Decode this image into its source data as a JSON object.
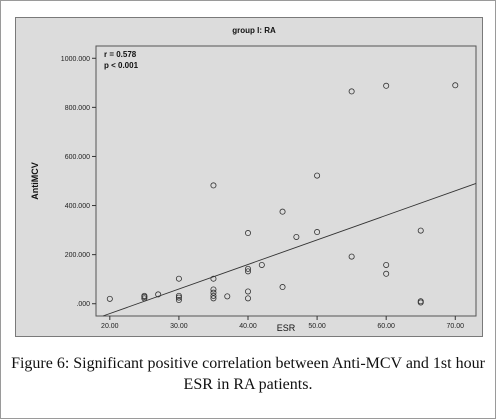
{
  "chart_data": {
    "type": "scatter",
    "title": "group I: RA",
    "xlabel": "ESR",
    "ylabel": "AntiMCV",
    "xlim": [
      18,
      73
    ],
    "ylim": [
      -50,
      1050
    ],
    "x_ticks": [
      "20.00",
      "30.00",
      "40.00",
      "50.00",
      "60.00",
      "70.00"
    ],
    "y_ticks": [
      ".000",
      "200.000",
      "400.000",
      "600.000",
      "800.000",
      "1000.000"
    ],
    "annotations": [
      "r = 0.578",
      "p < 0.001"
    ],
    "grid": false,
    "points": [
      {
        "x": 20,
        "y": 20
      },
      {
        "x": 25,
        "y": 22
      },
      {
        "x": 25,
        "y": 28
      },
      {
        "x": 25,
        "y": 32
      },
      {
        "x": 27,
        "y": 38
      },
      {
        "x": 30,
        "y": 15
      },
      {
        "x": 30,
        "y": 25
      },
      {
        "x": 30,
        "y": 32
      },
      {
        "x": 30,
        "y": 102
      },
      {
        "x": 35,
        "y": 22
      },
      {
        "x": 35,
        "y": 32
      },
      {
        "x": 35,
        "y": 45
      },
      {
        "x": 35,
        "y": 58
      },
      {
        "x": 35,
        "y": 102
      },
      {
        "x": 35,
        "y": 482
      },
      {
        "x": 37,
        "y": 30
      },
      {
        "x": 40,
        "y": 22
      },
      {
        "x": 40,
        "y": 50
      },
      {
        "x": 40,
        "y": 132
      },
      {
        "x": 40,
        "y": 142
      },
      {
        "x": 40,
        "y": 288
      },
      {
        "x": 42,
        "y": 158
      },
      {
        "x": 45,
        "y": 68
      },
      {
        "x": 45,
        "y": 375
      },
      {
        "x": 47,
        "y": 272
      },
      {
        "x": 50,
        "y": 292
      },
      {
        "x": 50,
        "y": 522
      },
      {
        "x": 55,
        "y": 192
      },
      {
        "x": 55,
        "y": 865
      },
      {
        "x": 60,
        "y": 122
      },
      {
        "x": 60,
        "y": 158
      },
      {
        "x": 60,
        "y": 888
      },
      {
        "x": 65,
        "y": 5
      },
      {
        "x": 65,
        "y": 10
      },
      {
        "x": 65,
        "y": 298
      },
      {
        "x": 70,
        "y": 890
      }
    ],
    "fit_line": {
      "x": [
        18,
        73
      ],
      "y": [
        -60,
        490
      ]
    },
    "colors": {
      "plot_background": "#dcdcdc",
      "marker": "#333333",
      "fit_line": "#333333"
    }
  },
  "caption": {
    "label": "Figure 6:",
    "text": "Significant positive correlation between Anti-MCV and 1st hour ESR in RA patients."
  }
}
